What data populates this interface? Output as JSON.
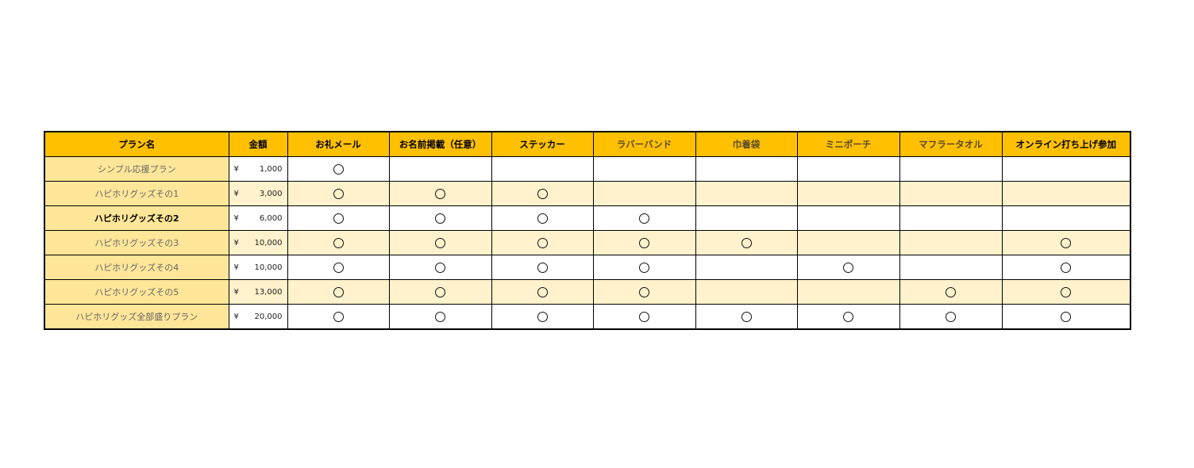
{
  "headers": [
    "プラン名",
    "金額",
    "お礼メール",
    "お名前掲載（任意）",
    "ステッカー",
    "ラバーバンド",
    "巾着袋",
    "ミニポーチ",
    "マフラータオル",
    "オンライン打ち上げ参加"
  ],
  "grey_headers": [
    5,
    6,
    7,
    8
  ],
  "currency": "¥",
  "mark": "○",
  "colors": {
    "header": "#FFC000",
    "name_col": "#FFE699",
    "alt_row": "#FFF2CC"
  },
  "rows": [
    {
      "name": "シンプル応援プラン",
      "price": "1,000",
      "marks": [
        1,
        0,
        0,
        0,
        0,
        0,
        0,
        0
      ]
    },
    {
      "name": "ハピホリグッズその1",
      "price": "3,000",
      "marks": [
        1,
        1,
        1,
        0,
        0,
        0,
        0,
        0
      ]
    },
    {
      "name": "ハピホリグッズその2",
      "price": "6,000",
      "marks": [
        1,
        1,
        1,
        1,
        0,
        0,
        0,
        0
      ],
      "bold": true
    },
    {
      "name": "ハピホリグッズその3",
      "price": "10,000",
      "marks": [
        1,
        1,
        1,
        1,
        1,
        0,
        0,
        1
      ]
    },
    {
      "name": "ハピホリグッズその4",
      "price": "10,000",
      "marks": [
        1,
        1,
        1,
        1,
        0,
        1,
        0,
        1
      ]
    },
    {
      "name": "ハピホリグッズその5",
      "price": "13,000",
      "marks": [
        1,
        1,
        1,
        1,
        0,
        0,
        1,
        1
      ]
    },
    {
      "name": "ハピホリグッズ全部盛りプラン",
      "price": "20,000",
      "marks": [
        1,
        1,
        1,
        1,
        1,
        1,
        1,
        1
      ]
    }
  ]
}
